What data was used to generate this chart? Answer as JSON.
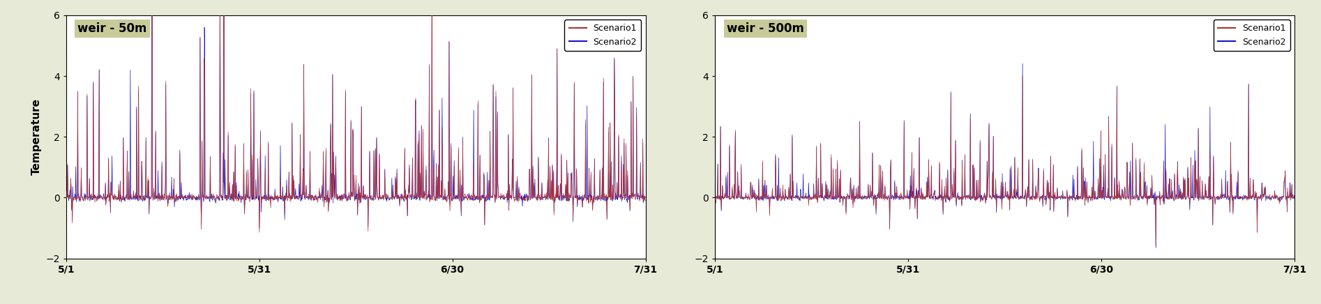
{
  "fig_width": 18.94,
  "fig_height": 4.36,
  "bg_color": "#e8ead8",
  "plot_bg_color": "#ffffff",
  "scenario1_color": "#b03030",
  "scenario2_color": "#1414cc",
  "ylabel": "Temperature",
  "ylim": [
    -2,
    6
  ],
  "yticks": [
    -2,
    0,
    2,
    4,
    6
  ],
  "xtick_labels": [
    "5/1",
    "5/31",
    "6/30",
    "7/31"
  ],
  "panel1_label": "weir - 50m",
  "panel2_label": "weir - 500m",
  "legend_scenario1": "Scenario1",
  "legend_scenario2": "Scenario2",
  "label_bg_color": "#c8ca9a",
  "n_points": 1488,
  "seed1_s1": 42,
  "seed1_s2": 7,
  "seed2_s1": 55,
  "seed2_s2": 88
}
